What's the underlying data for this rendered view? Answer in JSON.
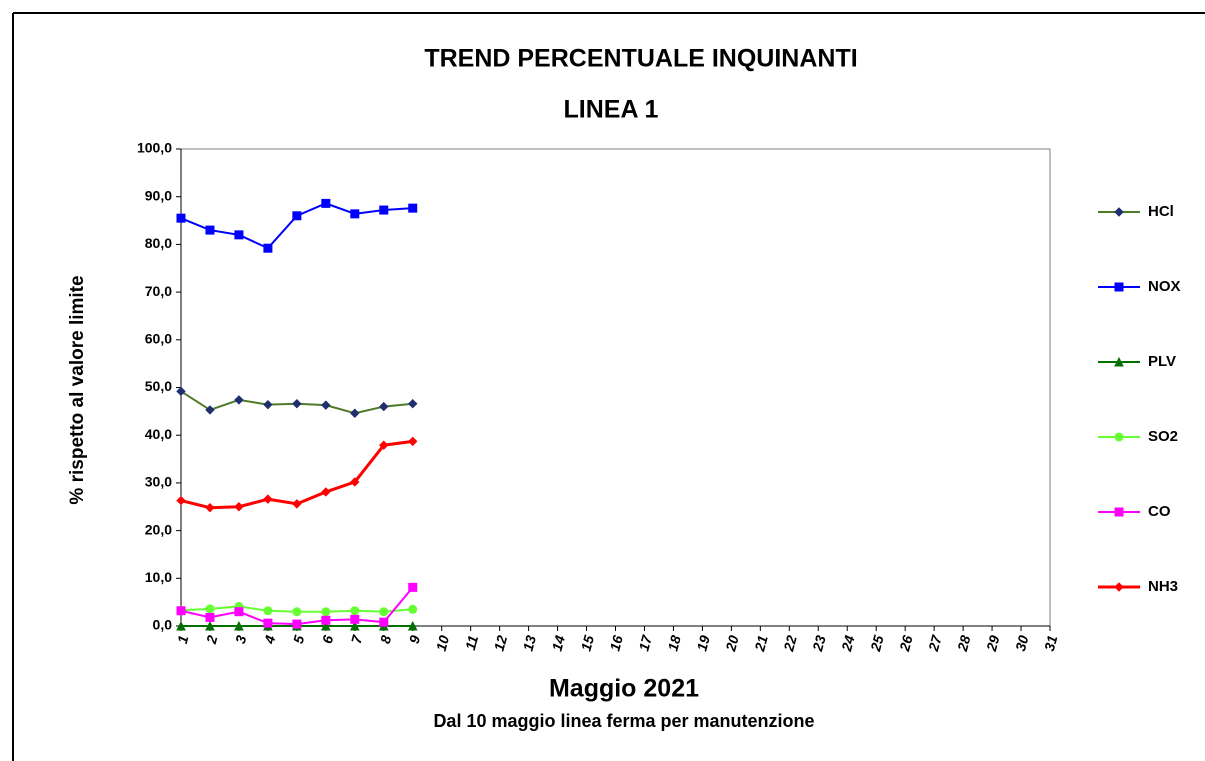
{
  "chart_data": {
    "type": "line",
    "title": "TREND PERCENTUALE INQUINANTI",
    "subtitle": "LINEA 1",
    "x_label": "Maggio 2021",
    "annotation": "Dal 10 maggio linea ferma per manutenzione",
    "y_label": "% rispetto al valore limite",
    "categories": [
      "1",
      "2",
      "3",
      "4",
      "5",
      "6",
      "7",
      "8",
      "9",
      "10",
      "11",
      "12",
      "13",
      "14",
      "15",
      "16",
      "17",
      "18",
      "19",
      "20",
      "21",
      "22",
      "23",
      "24",
      "25",
      "26",
      "27",
      "28",
      "29",
      "30",
      "31"
    ],
    "ylim": [
      0,
      100
    ],
    "yticks": [
      {
        "value": 0,
        "label": "0,0"
      },
      {
        "value": 10,
        "label": "10,0"
      },
      {
        "value": 20,
        "label": "20,0"
      },
      {
        "value": 30,
        "label": "30,0"
      },
      {
        "value": 40,
        "label": "40,0"
      },
      {
        "value": 50,
        "label": "50,0"
      },
      {
        "value": 60,
        "label": "60,0"
      },
      {
        "value": 70,
        "label": "70,0"
      },
      {
        "value": 80,
        "label": "80,0"
      },
      {
        "value": 90,
        "label": "90,0"
      },
      {
        "value": 100,
        "label": "100,0"
      }
    ],
    "grid": false,
    "legend": "right",
    "series": [
      {
        "name": "HCl",
        "color": "#4f7a28",
        "marker": "diamond",
        "marker_color": "#1f2f6f",
        "values": [
          49.2,
          45.3,
          47.4,
          46.4,
          46.6,
          46.3,
          44.6,
          46.0,
          46.6,
          null,
          null,
          null,
          null,
          null,
          null,
          null,
          null,
          null,
          null,
          null,
          null,
          null,
          null,
          null,
          null,
          null,
          null,
          null,
          null,
          null,
          null
        ]
      },
      {
        "name": "NOX",
        "color": "#0000ff",
        "marker": "square",
        "marker_color": "#0000ff",
        "values": [
          85.5,
          83.0,
          82.0,
          79.2,
          86.0,
          88.6,
          86.4,
          87.2,
          87.6,
          null,
          null,
          null,
          null,
          null,
          null,
          null,
          null,
          null,
          null,
          null,
          null,
          null,
          null,
          null,
          null,
          null,
          null,
          null,
          null,
          null,
          null
        ]
      },
      {
        "name": "PLV",
        "color": "#007000",
        "marker": "triangle",
        "marker_color": "#007000",
        "values": [
          0,
          0,
          0,
          0,
          0,
          0,
          0,
          0,
          0,
          null,
          null,
          null,
          null,
          null,
          null,
          null,
          null,
          null,
          null,
          null,
          null,
          null,
          null,
          null,
          null,
          null,
          null,
          null,
          null,
          null,
          null
        ]
      },
      {
        "name": "SO2",
        "color": "#66ff33",
        "marker": "circle",
        "marker_color": "#66ff33",
        "values": [
          3.3,
          3.6,
          4.1,
          3.2,
          3.0,
          3.0,
          3.2,
          3.0,
          3.5,
          null,
          null,
          null,
          null,
          null,
          null,
          null,
          null,
          null,
          null,
          null,
          null,
          null,
          null,
          null,
          null,
          null,
          null,
          null,
          null,
          null,
          null
        ]
      },
      {
        "name": "CO",
        "color": "#ff00ff",
        "marker": "square",
        "marker_color": "#ff00ff",
        "values": [
          3.2,
          1.8,
          3.0,
          0.6,
          0.4,
          1.2,
          1.4,
          0.8,
          8.1,
          null,
          null,
          null,
          null,
          null,
          null,
          null,
          null,
          null,
          null,
          null,
          null,
          null,
          null,
          null,
          null,
          null,
          null,
          null,
          null,
          null,
          null
        ]
      },
      {
        "name": "NH3",
        "color": "#ff0000",
        "marker": "diamond",
        "marker_color": "#ff0000",
        "values": [
          26.3,
          24.8,
          25.0,
          26.6,
          25.6,
          28.1,
          30.2,
          37.9,
          38.7,
          null,
          null,
          null,
          null,
          null,
          null,
          null,
          null,
          null,
          null,
          null,
          null,
          null,
          null,
          null,
          null,
          null,
          null,
          null,
          null,
          null,
          null
        ]
      }
    ]
  }
}
